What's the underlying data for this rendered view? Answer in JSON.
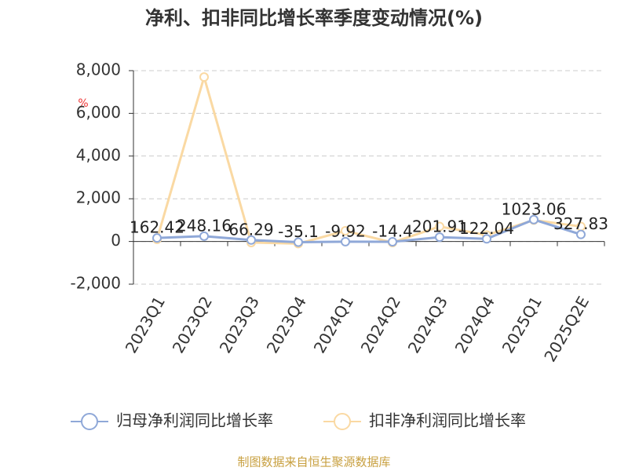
{
  "chart_data": {
    "type": "line",
    "title": "净利、扣非同比增长率季度变动情况(%)",
    "y_unit": "%",
    "categories": [
      "2023Q1",
      "2023Q2",
      "2023Q3",
      "2023Q4",
      "2024Q1",
      "2024Q2",
      "2024Q3",
      "2024Q4",
      "2025Q1",
      "2025Q2E"
    ],
    "series": [
      {
        "name": "归母净利润同比增长率",
        "color": "#8fa8d8",
        "values": [
          162.42,
          248.16,
          66.29,
          -35.1,
          -9.92,
          -14.4,
          201.91,
          122.04,
          1023.06,
          327.83
        ]
      },
      {
        "name": "扣非净利润同比增长率",
        "color": "#fad9a3",
        "values": [
          100,
          7700,
          -50,
          -100,
          500,
          -50,
          700,
          300,
          1000,
          700
        ]
      }
    ],
    "ylim": [
      -2000,
      8000
    ],
    "yticks": [
      {
        "value": -2000,
        "label": "-2,000"
      },
      0,
      {
        "value": 2000,
        "label": "2,000"
      },
      {
        "value": 4000,
        "label": "4,000"
      },
      {
        "value": 6000,
        "label": "6,000"
      },
      {
        "value": 8000,
        "label": "8,000"
      }
    ],
    "grid": true,
    "footer": "制图数据来自恒生聚源数据库"
  }
}
